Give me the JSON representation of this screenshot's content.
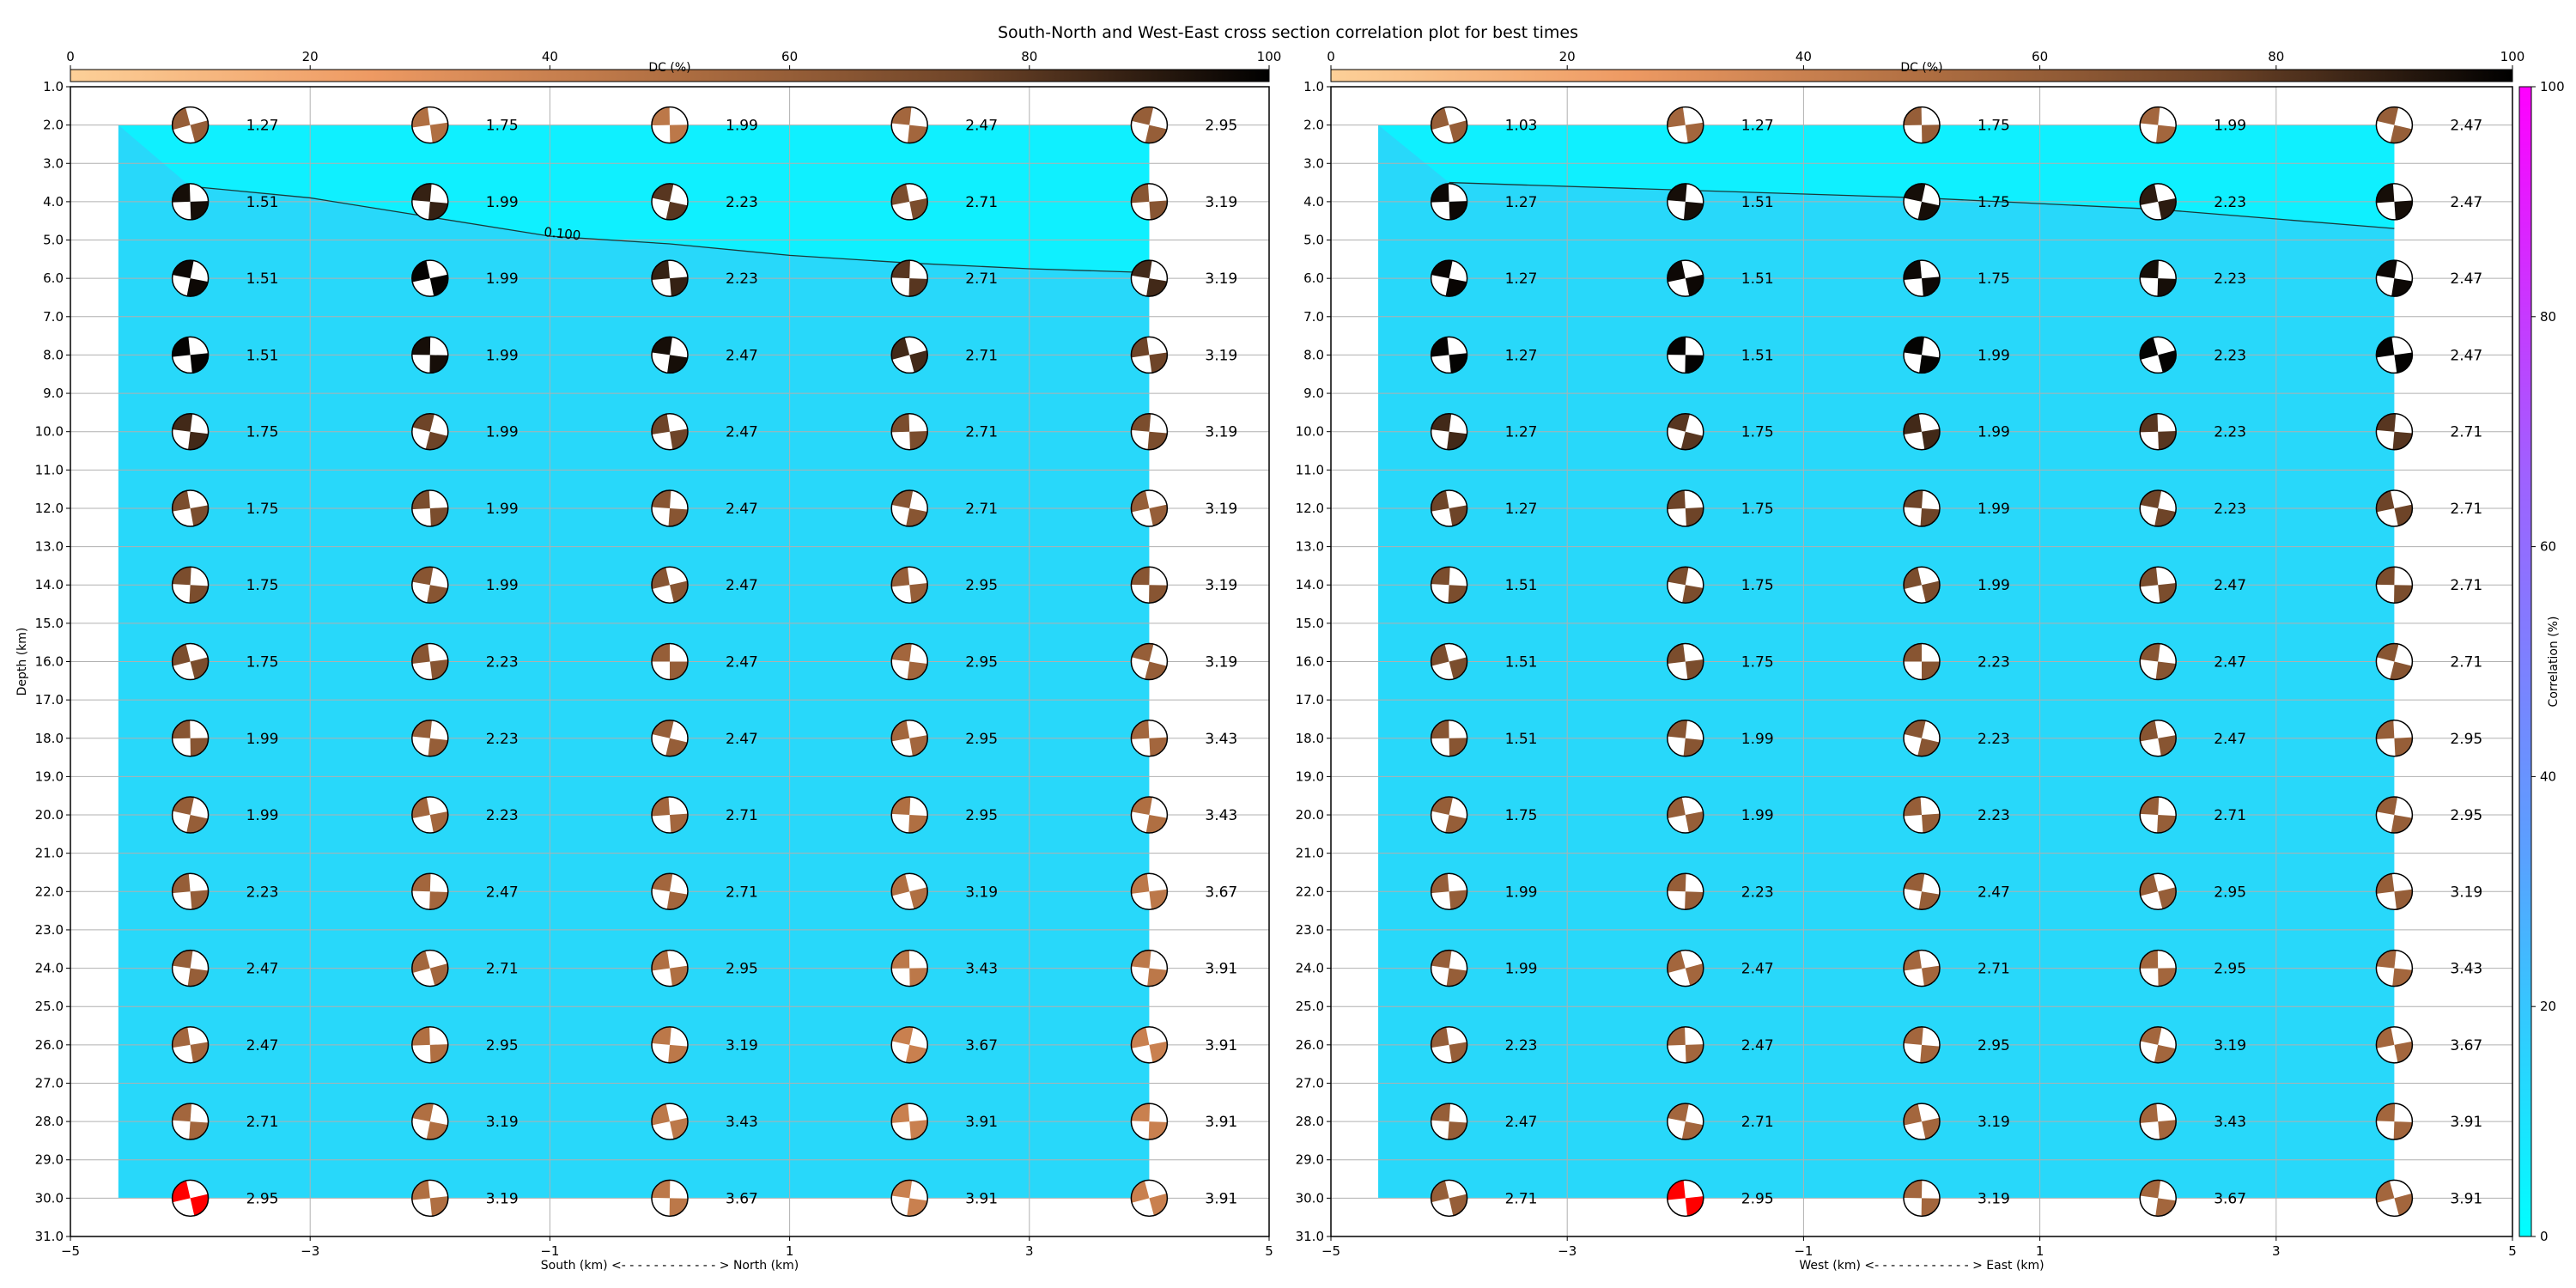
{
  "figure_title": "South-North and West-East cross section correlation plot for best times",
  "dc_colorbar": {
    "label": "DC (%)",
    "ticks": [
      0,
      20,
      40,
      60,
      80,
      100
    ],
    "colors": [
      "#fdd098",
      "#ee9a63",
      "#b06f42",
      "#6e4428",
      "#000000"
    ]
  },
  "corr_colorbar": {
    "label": "Correlation (%)",
    "ticks": [
      0,
      20,
      40,
      60,
      80,
      100
    ],
    "colors": [
      "#00ffff",
      "#5aa0ff",
      "#a060ff",
      "#ff00ff"
    ]
  },
  "fill_colors": {
    "upper": "#0ff0ff",
    "lower": "#28d8fa",
    "highlight": "#ff0000"
  },
  "chart_data": [
    {
      "type": "heatmap",
      "xlabel": "South (km) <- - - - - - - - - - - - > North (km)",
      "ylabel": "Depth (km)",
      "xlim": [
        -5,
        5
      ],
      "ylim": [
        31,
        1
      ],
      "xticks": [
        "−5",
        "−3",
        "−1",
        "1",
        "3",
        "5"
      ],
      "yticks": [
        "1.0",
        "2.0",
        "3.0",
        "4.0",
        "5.0",
        "6.0",
        "7.0",
        "8.0",
        "9.0",
        "10.0",
        "11.0",
        "12.0",
        "13.0",
        "14.0",
        "15.0",
        "16.0",
        "17.0",
        "18.0",
        "19.0",
        "20.0",
        "21.0",
        "22.0",
        "23.0",
        "24.0",
        "25.0",
        "26.0",
        "27.0",
        "28.0",
        "29.0",
        "30.0",
        "31.0"
      ],
      "x": [
        -4,
        -2,
        0,
        2,
        4
      ],
      "depths": [
        2,
        4,
        6,
        8,
        10,
        12,
        14,
        16,
        18,
        20,
        22,
        24,
        26,
        28,
        30
      ],
      "contour_label": "0.100",
      "contour": {
        "x": [
          -4,
          -3,
          -2,
          -1,
          0,
          1,
          2,
          3,
          4
        ],
        "depth": [
          3.6,
          3.9,
          4.4,
          4.9,
          5.1,
          5.4,
          5.6,
          5.75,
          5.85
        ]
      },
      "values": [
        [
          1.27,
          1.75,
          1.99,
          2.47,
          2.95
        ],
        [
          1.51,
          1.99,
          2.23,
          2.71,
          3.19
        ],
        [
          1.51,
          1.99,
          2.23,
          2.71,
          3.19
        ],
        [
          1.51,
          1.99,
          2.47,
          2.71,
          3.19
        ],
        [
          1.75,
          1.99,
          2.47,
          2.71,
          3.19
        ],
        [
          1.75,
          1.99,
          2.47,
          2.71,
          3.19
        ],
        [
          1.75,
          1.99,
          2.47,
          2.95,
          3.19
        ],
        [
          1.75,
          2.23,
          2.47,
          2.95,
          3.19
        ],
        [
          1.99,
          2.23,
          2.47,
          2.95,
          3.43
        ],
        [
          1.99,
          2.23,
          2.71,
          2.95,
          3.43
        ],
        [
          2.23,
          2.47,
          2.71,
          3.19,
          3.67
        ],
        [
          2.47,
          2.71,
          2.95,
          3.43,
          3.91
        ],
        [
          2.47,
          2.95,
          3.19,
          3.67,
          3.91
        ],
        [
          2.71,
          3.19,
          3.43,
          3.91,
          3.91
        ],
        [
          2.95,
          3.19,
          3.67,
          3.91,
          3.91
        ]
      ],
      "dc": [
        [
          60,
          50,
          45,
          55,
          60
        ],
        [
          95,
          88,
          80,
          70,
          65
        ],
        [
          97,
          99,
          88,
          80,
          85
        ],
        [
          99,
          95,
          95,
          85,
          75
        ],
        [
          85,
          75,
          75,
          70,
          70
        ],
        [
          70,
          70,
          65,
          65,
          60
        ],
        [
          70,
          65,
          65,
          60,
          65
        ],
        [
          70,
          65,
          60,
          55,
          60
        ],
        [
          65,
          60,
          60,
          55,
          55
        ],
        [
          60,
          55,
          55,
          50,
          50
        ],
        [
          60,
          55,
          55,
          50,
          45
        ],
        [
          60,
          55,
          50,
          45,
          45
        ],
        [
          55,
          50,
          45,
          40,
          40
        ],
        [
          55,
          50,
          45,
          40,
          40
        ],
        [
          0,
          50,
          45,
          40,
          40
        ]
      ],
      "highlight": {
        "row": 14,
        "col": 0
      }
    },
    {
      "type": "heatmap",
      "xlabel": "West (km) <- - - - - - - - - - - - > East (km)",
      "ylabel": "",
      "xlim": [
        -5,
        5
      ],
      "ylim": [
        31,
        1
      ],
      "xticks": [
        "−5",
        "−3",
        "−1",
        "1",
        "3",
        "5"
      ],
      "yticks": [
        "1.0",
        "2.0",
        "3.0",
        "4.0",
        "5.0",
        "6.0",
        "7.0",
        "8.0",
        "9.0",
        "10.0",
        "11.0",
        "12.0",
        "13.0",
        "14.0",
        "15.0",
        "16.0",
        "17.0",
        "18.0",
        "19.0",
        "20.0",
        "21.0",
        "22.0",
        "23.0",
        "24.0",
        "25.0",
        "26.0",
        "27.0",
        "28.0",
        "29.0",
        "30.0",
        "31.0"
      ],
      "x": [
        -4,
        -2,
        0,
        2,
        4
      ],
      "depths": [
        2,
        4,
        6,
        8,
        10,
        12,
        14,
        16,
        18,
        20,
        22,
        24,
        26,
        28,
        30
      ],
      "contour_label": "",
      "contour": {
        "x": [
          -4,
          -2,
          0,
          2,
          4
        ],
        "depth": [
          3.5,
          3.7,
          3.9,
          4.2,
          4.7
        ]
      },
      "values": [
        [
          1.03,
          1.27,
          1.75,
          1.99,
          2.47
        ],
        [
          1.27,
          1.51,
          1.75,
          2.23,
          2.47
        ],
        [
          1.27,
          1.51,
          1.75,
          2.23,
          2.47
        ],
        [
          1.27,
          1.51,
          1.99,
          2.23,
          2.47
        ],
        [
          1.27,
          1.75,
          1.99,
          2.23,
          2.71
        ],
        [
          1.27,
          1.75,
          1.99,
          2.23,
          2.71
        ],
        [
          1.51,
          1.75,
          1.99,
          2.47,
          2.71
        ],
        [
          1.51,
          1.75,
          2.23,
          2.47,
          2.71
        ],
        [
          1.51,
          1.99,
          2.23,
          2.47,
          2.95
        ],
        [
          1.75,
          1.99,
          2.23,
          2.71,
          2.95
        ],
        [
          1.99,
          2.23,
          2.47,
          2.95,
          3.19
        ],
        [
          1.99,
          2.47,
          2.71,
          2.95,
          3.43
        ],
        [
          2.23,
          2.47,
          2.95,
          3.19,
          3.67
        ],
        [
          2.47,
          2.71,
          3.19,
          3.43,
          3.91
        ],
        [
          2.71,
          2.95,
          3.19,
          3.67,
          3.91
        ]
      ],
      "dc": [
        [
          60,
          55,
          60,
          55,
          60
        ],
        [
          97,
          95,
          95,
          90,
          95
        ],
        [
          98,
          97,
          97,
          95,
          97
        ],
        [
          99,
          99,
          99,
          99,
          99
        ],
        [
          85,
          80,
          85,
          80,
          80
        ],
        [
          75,
          75,
          75,
          75,
          75
        ],
        [
          70,
          70,
          70,
          70,
          70
        ],
        [
          70,
          70,
          65,
          65,
          65
        ],
        [
          65,
          65,
          65,
          65,
          60
        ],
        [
          60,
          60,
          60,
          60,
          60
        ],
        [
          60,
          60,
          60,
          60,
          60
        ],
        [
          60,
          55,
          55,
          55,
          55
        ],
        [
          60,
          55,
          55,
          55,
          55
        ],
        [
          60,
          55,
          55,
          55,
          55
        ],
        [
          60,
          0,
          55,
          55,
          55
        ]
      ],
      "highlight": {
        "row": 14,
        "col": 1
      }
    }
  ]
}
